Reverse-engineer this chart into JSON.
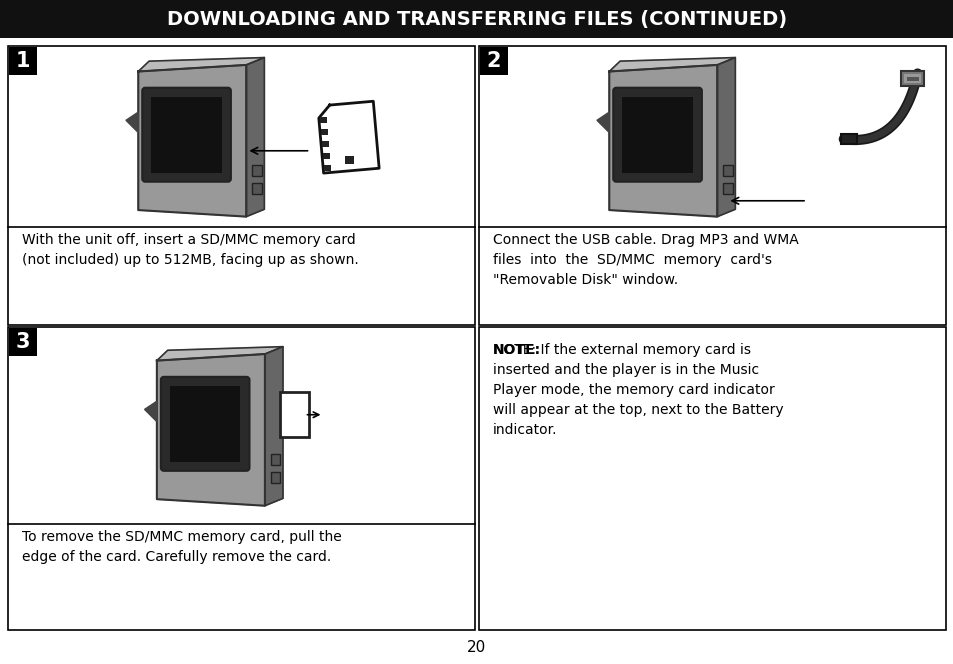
{
  "title": "DOWNLOADING AND TRANSFERRING FILES (CONTINUED)",
  "title_bg": "#111111",
  "title_color": "#ffffff",
  "page_number": "20",
  "panel1_label": "1",
  "panel2_label": "2",
  "panel3_label": "3",
  "panel1_text": "With the unit off, insert a SD/MMC memory card\n(not included) up to 512MB, facing up as shown.",
  "panel2_text_line1": "Connect the USB cable. Drag MP3 and WMA",
  "panel2_text_line2": "files  into  the  SD/MMC  memory  card's",
  "panel2_text_line3": "\"Removable Disk\" window.",
  "panel3_text": "To remove the SD/MMC memory card, pull the\nedge of the card. Carefully remove the card.",
  "note_text": "NOTE: If the external memory card is\ninserted and the player is in the Music\nPlayer mode, the memory card indicator\nwill appear at the top, next to the Battery\nindicator.",
  "bg_color": "#ffffff",
  "border_color": "#000000",
  "gray_body": "#999999",
  "gray_dark": "#666666",
  "gray_light": "#bbbbbb",
  "screen_dark": "#222222",
  "screen_border": "#444444",
  "font_size_title": 14,
  "font_size_label": 13,
  "font_size_text": 10,
  "font_size_note": 10,
  "font_size_page": 11
}
